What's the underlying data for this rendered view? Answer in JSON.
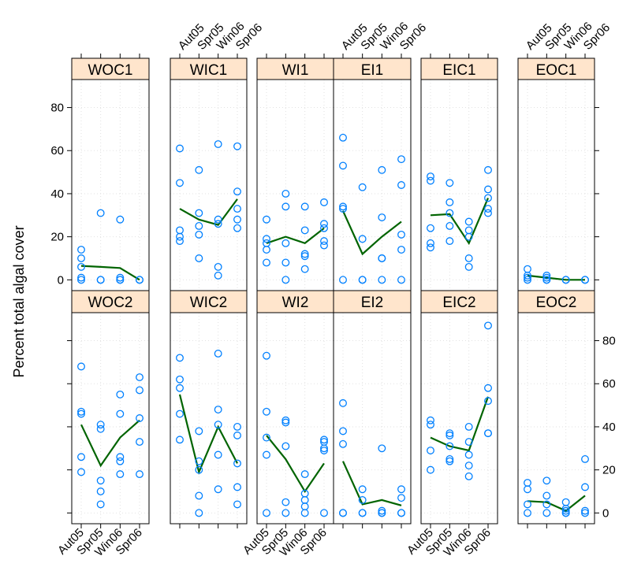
{
  "chart_data": {
    "type": "scatter",
    "layout": "lattice panels, 2 rows x 6 columns, smoothed mean line per panel",
    "ylabel": "Percent total algal cover",
    "categories": [
      "Aut05",
      "Spr05",
      "Win06",
      "Spr06"
    ],
    "ylim": [
      -5,
      93
    ],
    "y_ticks": [
      0,
      20,
      40,
      60,
      80
    ],
    "grid": true,
    "colors": {
      "points": "#0080ff",
      "line": "#006400",
      "strip": "#ffe5cc"
    },
    "panels": [
      {
        "name": "WOC1",
        "points": [
          [
            0,
            14
          ],
          [
            0,
            10
          ],
          [
            0,
            6
          ],
          [
            0,
            1
          ],
          [
            0,
            0
          ],
          [
            1,
            31
          ],
          [
            1,
            0
          ],
          [
            1,
            0
          ],
          [
            2,
            28
          ],
          [
            2,
            1
          ],
          [
            2,
            0
          ],
          [
            2,
            0
          ],
          [
            3,
            0
          ],
          [
            3,
            0
          ]
        ],
        "line": [
          6.5,
          6,
          5.5,
          0
        ]
      },
      {
        "name": "WIC1",
        "points": [
          [
            0,
            61
          ],
          [
            0,
            45
          ],
          [
            0,
            23
          ],
          [
            0,
            20
          ],
          [
            0,
            18
          ],
          [
            1,
            51
          ],
          [
            1,
            31
          ],
          [
            1,
            25
          ],
          [
            1,
            21
          ],
          [
            1,
            10
          ],
          [
            2,
            63
          ],
          [
            2,
            28
          ],
          [
            2,
            26
          ],
          [
            2,
            6
          ],
          [
            2,
            2
          ],
          [
            3,
            62
          ],
          [
            3,
            41
          ],
          [
            3,
            33
          ],
          [
            3,
            28
          ],
          [
            3,
            24
          ]
        ],
        "line": [
          33,
          28,
          25.5,
          37.5
        ]
      },
      {
        "name": "WI1",
        "points": [
          [
            0,
            28
          ],
          [
            0,
            19
          ],
          [
            0,
            17
          ],
          [
            0,
            14
          ],
          [
            0,
            8
          ],
          [
            1,
            40
          ],
          [
            1,
            34
          ],
          [
            1,
            17
          ],
          [
            1,
            8
          ],
          [
            1,
            0
          ],
          [
            2,
            34
          ],
          [
            2,
            23
          ],
          [
            2,
            12
          ],
          [
            2,
            11
          ],
          [
            2,
            5
          ],
          [
            3,
            36
          ],
          [
            3,
            26
          ],
          [
            3,
            24
          ],
          [
            3,
            18
          ],
          [
            3,
            16
          ]
        ],
        "line": [
          17,
          20,
          17,
          24
        ]
      },
      {
        "name": "EI1",
        "points": [
          [
            0,
            66
          ],
          [
            0,
            53
          ],
          [
            0,
            34
          ],
          [
            0,
            33
          ],
          [
            0,
            0
          ],
          [
            1,
            43
          ],
          [
            1,
            19
          ],
          [
            1,
            0
          ],
          [
            1,
            0
          ],
          [
            2,
            51
          ],
          [
            2,
            29
          ],
          [
            2,
            10
          ],
          [
            2,
            10
          ],
          [
            2,
            0
          ],
          [
            3,
            56
          ],
          [
            3,
            44
          ],
          [
            3,
            21
          ],
          [
            3,
            14
          ],
          [
            3,
            0
          ]
        ],
        "line": [
          32,
          12,
          20,
          27
        ]
      },
      {
        "name": "EIC1",
        "points": [
          [
            0,
            48
          ],
          [
            0,
            46
          ],
          [
            0,
            24
          ],
          [
            0,
            17
          ],
          [
            0,
            15
          ],
          [
            1,
            45
          ],
          [
            1,
            36
          ],
          [
            1,
            31
          ],
          [
            1,
            25
          ],
          [
            1,
            18
          ],
          [
            2,
            27
          ],
          [
            2,
            23
          ],
          [
            2,
            20
          ],
          [
            2,
            10
          ],
          [
            2,
            6
          ],
          [
            3,
            51
          ],
          [
            3,
            42
          ],
          [
            3,
            38
          ],
          [
            3,
            33
          ],
          [
            3,
            31
          ]
        ],
        "line": [
          30,
          30.5,
          17,
          38
        ]
      },
      {
        "name": "EOC1",
        "points": [
          [
            0,
            5
          ],
          [
            0,
            2
          ],
          [
            0,
            1
          ],
          [
            0,
            0
          ],
          [
            1,
            2
          ],
          [
            1,
            1
          ],
          [
            1,
            0
          ],
          [
            1,
            0
          ],
          [
            2,
            0
          ],
          [
            2,
            0
          ],
          [
            3,
            0
          ],
          [
            3,
            0
          ]
        ],
        "line": [
          2,
          1,
          0,
          0
        ]
      },
      {
        "name": "WOC2",
        "points": [
          [
            0,
            68
          ],
          [
            0,
            47
          ],
          [
            0,
            46
          ],
          [
            0,
            26
          ],
          [
            0,
            19
          ],
          [
            1,
            41
          ],
          [
            1,
            39
          ],
          [
            1,
            15
          ],
          [
            1,
            10
          ],
          [
            1,
            4
          ],
          [
            2,
            55
          ],
          [
            2,
            46
          ],
          [
            2,
            26
          ],
          [
            2,
            24
          ],
          [
            2,
            18
          ],
          [
            3,
            63
          ],
          [
            3,
            57
          ],
          [
            3,
            44
          ],
          [
            3,
            33
          ],
          [
            3,
            18
          ]
        ],
        "line": [
          41,
          22,
          35,
          43
        ]
      },
      {
        "name": "WIC2",
        "points": [
          [
            0,
            72
          ],
          [
            0,
            62
          ],
          [
            0,
            58
          ],
          [
            0,
            46
          ],
          [
            0,
            34
          ],
          [
            1,
            38
          ],
          [
            1,
            24
          ],
          [
            1,
            20
          ],
          [
            1,
            8
          ],
          [
            1,
            0
          ],
          [
            2,
            74
          ],
          [
            2,
            48
          ],
          [
            2,
            41
          ],
          [
            2,
            27
          ],
          [
            2,
            11
          ],
          [
            3,
            40
          ],
          [
            3,
            36
          ],
          [
            3,
            23
          ],
          [
            3,
            12
          ],
          [
            3,
            4
          ]
        ],
        "line": [
          55,
          19,
          40,
          23
        ]
      },
      {
        "name": "WI2",
        "points": [
          [
            0,
            73
          ],
          [
            0,
            47
          ],
          [
            0,
            35
          ],
          [
            0,
            27
          ],
          [
            0,
            0
          ],
          [
            1,
            43
          ],
          [
            1,
            42
          ],
          [
            1,
            31
          ],
          [
            1,
            5
          ],
          [
            1,
            0
          ],
          [
            2,
            18
          ],
          [
            2,
            9
          ],
          [
            2,
            6
          ],
          [
            2,
            3
          ],
          [
            2,
            0
          ],
          [
            3,
            34
          ],
          [
            3,
            33
          ],
          [
            3,
            30
          ],
          [
            3,
            29
          ],
          [
            3,
            0
          ]
        ],
        "line": [
          36,
          25,
          10,
          23
        ]
      },
      {
        "name": "EI2",
        "points": [
          [
            0,
            51
          ],
          [
            0,
            38
          ],
          [
            0,
            32
          ],
          [
            0,
            0
          ],
          [
            0,
            0
          ],
          [
            1,
            11
          ],
          [
            1,
            6
          ],
          [
            1,
            0
          ],
          [
            1,
            0
          ],
          [
            2,
            30
          ],
          [
            2,
            1
          ],
          [
            2,
            0
          ],
          [
            2,
            0
          ],
          [
            3,
            11
          ],
          [
            3,
            7
          ],
          [
            3,
            0
          ],
          [
            3,
            0
          ]
        ],
        "line": [
          24,
          4,
          6,
          3.5
        ]
      },
      {
        "name": "EIC2",
        "points": [
          [
            0,
            43
          ],
          [
            0,
            41
          ],
          [
            0,
            29
          ],
          [
            0,
            20
          ],
          [
            1,
            37
          ],
          [
            1,
            36
          ],
          [
            1,
            31
          ],
          [
            1,
            25
          ],
          [
            1,
            24
          ],
          [
            2,
            40
          ],
          [
            2,
            33
          ],
          [
            2,
            27
          ],
          [
            2,
            22
          ],
          [
            2,
            17
          ],
          [
            3,
            87
          ],
          [
            3,
            58
          ],
          [
            3,
            52
          ],
          [
            3,
            37
          ],
          [
            3,
            37
          ]
        ],
        "line": [
          35,
          31,
          29,
          54
        ]
      },
      {
        "name": "EOC2",
        "points": [
          [
            0,
            14
          ],
          [
            0,
            11
          ],
          [
            0,
            4
          ],
          [
            0,
            0
          ],
          [
            1,
            15
          ],
          [
            1,
            8
          ],
          [
            1,
            4
          ],
          [
            1,
            0
          ],
          [
            2,
            5
          ],
          [
            2,
            2
          ],
          [
            2,
            1
          ],
          [
            2,
            0
          ],
          [
            2,
            0
          ],
          [
            3,
            25
          ],
          [
            3,
            12
          ],
          [
            3,
            1
          ],
          [
            3,
            0
          ]
        ],
        "line": [
          5.5,
          5,
          1,
          8
        ]
      }
    ]
  }
}
